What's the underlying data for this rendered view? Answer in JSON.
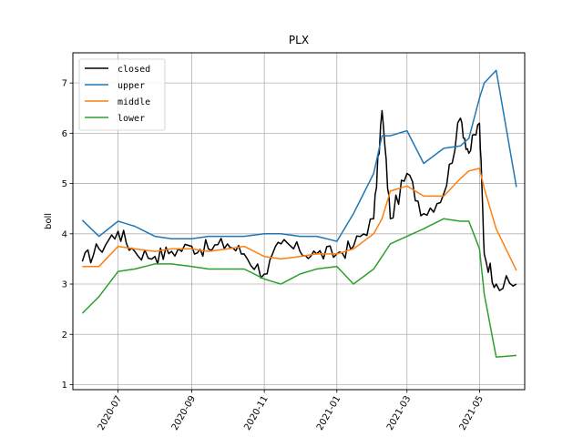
{
  "chart_data": {
    "type": "line",
    "title": "PLX",
    "xlabel": "",
    "ylabel": "boll",
    "grid": true,
    "legend_position": "top-left",
    "xlim": [
      "2020-05-24",
      "2021-06-08"
    ],
    "ylim": [
      0.9,
      7.6
    ],
    "x_ticks": [
      "2020-07",
      "2020-09",
      "2020-11",
      "2021-01",
      "2021-03",
      "2021-05"
    ],
    "y_ticks": [
      1,
      2,
      3,
      4,
      5,
      6,
      7
    ],
    "x": [
      "2020-06-01",
      "2020-06-15",
      "2020-07-01",
      "2020-07-15",
      "2020-08-01",
      "2020-08-15",
      "2020-09-01",
      "2020-09-15",
      "2020-10-01",
      "2020-10-15",
      "2020-11-01",
      "2020-11-15",
      "2020-12-01",
      "2020-12-15",
      "2021-01-01",
      "2021-01-15",
      "2021-02-01",
      "2021-02-08",
      "2021-02-15",
      "2021-03-01",
      "2021-03-15",
      "2021-04-01",
      "2021-04-15",
      "2021-04-22",
      "2021-05-01",
      "2021-05-05",
      "2021-05-15",
      "2021-06-01"
    ],
    "series": [
      {
        "name": "closed",
        "color": "#000000",
        "values": [
          3.45,
          3.7,
          4.05,
          3.65,
          3.55,
          3.65,
          3.75,
          3.7,
          3.8,
          3.6,
          3.2,
          3.8,
          3.65,
          3.6,
          3.6,
          3.75,
          4.3,
          6.45,
          4.3,
          5.2,
          4.4,
          4.8,
          6.3,
          5.6,
          6.2,
          3.6,
          3.0,
          3.0
        ]
      },
      {
        "name": "upper",
        "color": "#1f77b4",
        "values": [
          4.27,
          3.95,
          4.25,
          4.15,
          3.95,
          3.9,
          3.9,
          3.95,
          3.95,
          3.95,
          4.0,
          4.0,
          3.95,
          3.95,
          3.85,
          4.4,
          5.2,
          5.95,
          5.95,
          6.05,
          5.4,
          5.7,
          5.75,
          5.9,
          6.7,
          7.0,
          7.25,
          4.93
        ]
      },
      {
        "name": "middle",
        "color": "#ff7f0e",
        "values": [
          3.35,
          3.35,
          3.75,
          3.7,
          3.65,
          3.7,
          3.7,
          3.65,
          3.7,
          3.75,
          3.55,
          3.5,
          3.55,
          3.6,
          3.6,
          3.7,
          4.0,
          4.3,
          4.85,
          4.95,
          4.75,
          4.75,
          5.1,
          5.25,
          5.3,
          4.9,
          4.1,
          3.27
        ]
      },
      {
        "name": "lower",
        "color": "#2ca02c",
        "values": [
          2.42,
          2.75,
          3.25,
          3.3,
          3.4,
          3.4,
          3.35,
          3.3,
          3.3,
          3.3,
          3.1,
          3.0,
          3.2,
          3.3,
          3.35,
          3.0,
          3.3,
          3.55,
          3.8,
          3.95,
          4.1,
          4.3,
          4.25,
          4.25,
          3.7,
          2.8,
          1.55,
          1.58
        ]
      }
    ]
  }
}
